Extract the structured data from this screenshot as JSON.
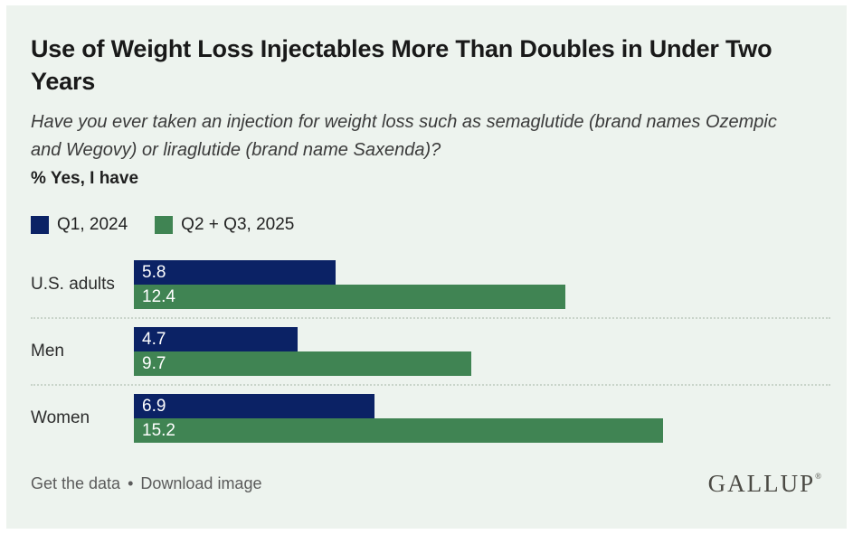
{
  "chart_data": {
    "type": "bar",
    "orientation": "horizontal",
    "title": "Use of Weight Loss Injectables More Than Doubles in Under Two Years",
    "subtitle": "Have you ever taken an injection for weight loss such as semaglutide (brand names Ozempic and Wegovy) or liraglutide (brand name Saxenda)?",
    "value_note": "% Yes, I have",
    "categories": [
      "U.S. adults",
      "Men",
      "Women"
    ],
    "series": [
      {
        "name": "Q1, 2024",
        "color": "#0b2265",
        "values": [
          5.8,
          4.7,
          6.9
        ]
      },
      {
        "name": "Q2 + Q3, 2025",
        "color": "#408453",
        "values": [
          12.4,
          9.7,
          15.2
        ]
      }
    ],
    "xlim": [
      0,
      20
    ],
    "grid": false,
    "data_labels": true,
    "data_label_color": "#ffffff",
    "legend_position": "top-left"
  },
  "colors": {
    "panel_background": "#edf3ee",
    "outer_border": "#ffffff",
    "separator": "#c9d4ca",
    "footer_text": "#5b5b5b",
    "brand_text": "#4b4a44"
  },
  "footer": {
    "links": [
      "Get the data",
      "Download image"
    ],
    "separator": "•",
    "brand": "GALLUP",
    "brand_mark": "®"
  }
}
